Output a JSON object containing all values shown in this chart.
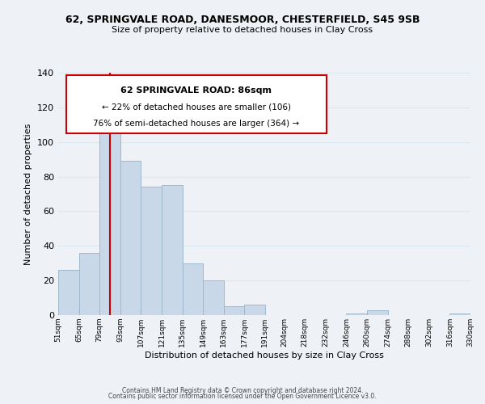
{
  "title": "62, SPRINGVALE ROAD, DANESMOOR, CHESTERFIELD, S45 9SB",
  "subtitle": "Size of property relative to detached houses in Clay Cross",
  "xlabel": "Distribution of detached houses by size in Clay Cross",
  "ylabel": "Number of detached properties",
  "footer_line1": "Contains HM Land Registry data © Crown copyright and database right 2024.",
  "footer_line2": "Contains public sector information licensed under the Open Government Licence v3.0.",
  "annotation_line1": "62 SPRINGVALE ROAD: 86sqm",
  "annotation_line2": "← 22% of detached houses are smaller (106)",
  "annotation_line3": "76% of semi-detached houses are larger (364) →",
  "bar_color": "#c8d8e8",
  "bar_edge_color": "#a0b8cc",
  "vline_color": "#cc0000",
  "vline_x": 86,
  "bin_edges": [
    51,
    65,
    79,
    93,
    107,
    121,
    135,
    149,
    163,
    177,
    191,
    204,
    218,
    232,
    246,
    260,
    274,
    288,
    302,
    316,
    330
  ],
  "bar_heights": [
    26,
    36,
    118,
    89,
    74,
    75,
    30,
    20,
    5,
    6,
    0,
    0,
    0,
    0,
    1,
    3,
    0,
    0,
    0,
    1
  ],
  "ylim": [
    0,
    140
  ],
  "yticks": [
    0,
    20,
    40,
    60,
    80,
    100,
    120,
    140
  ],
  "tick_labels": [
    "51sqm",
    "65sqm",
    "79sqm",
    "93sqm",
    "107sqm",
    "121sqm",
    "135sqm",
    "149sqm",
    "163sqm",
    "177sqm",
    "191sqm",
    "204sqm",
    "218sqm",
    "232sqm",
    "246sqm",
    "260sqm",
    "274sqm",
    "288sqm",
    "302sqm",
    "316sqm",
    "330sqm"
  ],
  "annotation_box_color": "#ffffff",
  "annotation_box_edge": "#cc0000",
  "grid_color": "#dce8f0",
  "background_color": "#eef2f7"
}
